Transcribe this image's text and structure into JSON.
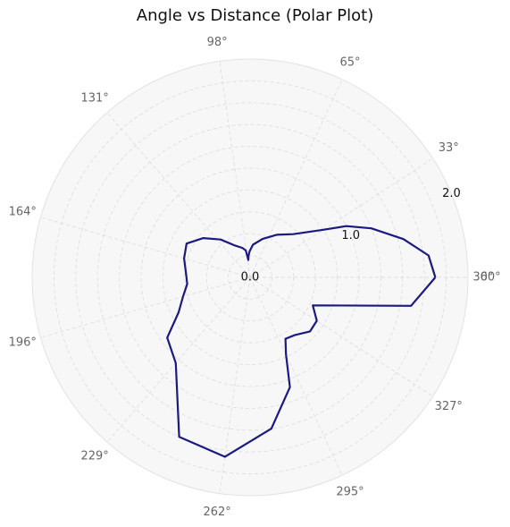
{
  "chart_data": {
    "type": "line",
    "projection": "polar",
    "title": "Angle vs Distance (Polar Plot)",
    "theta_unit": "degrees",
    "theta_tick_labels": [
      "0°",
      "33°",
      "65°",
      "98°",
      "131°",
      "164°",
      "196°",
      "229°",
      "262°",
      "295°",
      "327°",
      "360°"
    ],
    "r_tick_labels": [
      "0.0",
      "1.0",
      "2.0"
    ],
    "rlim": [
      0,
      2.0
    ],
    "grid": true,
    "series": [
      {
        "color": "#1a1a80",
        "theta": [
          0,
          7,
          14,
          22,
          28,
          33,
          45,
          58,
          72,
          85,
          91,
          94,
          96,
          99,
          105,
          115,
          128,
          140,
          152,
          164,
          176,
          186,
          196,
          206,
          216,
          229,
          246,
          262,
          278,
          290,
          295,
          300,
          308,
          318,
          327,
          336,
          350,
          360
        ],
        "r": [
          1.7,
          1.65,
          1.45,
          1.2,
          1.0,
          0.8,
          0.56,
          0.46,
          0.37,
          0.3,
          0.24,
          0.2,
          0.16,
          0.25,
          0.28,
          0.32,
          0.44,
          0.56,
          0.66,
          0.63,
          0.59,
          0.58,
          0.64,
          0.73,
          0.94,
          1.04,
          1.6,
          1.66,
          1.4,
          1.07,
          0.78,
          0.65,
          0.67,
          0.74,
          0.73,
          0.63,
          1.5,
          1.7
        ]
      }
    ]
  }
}
